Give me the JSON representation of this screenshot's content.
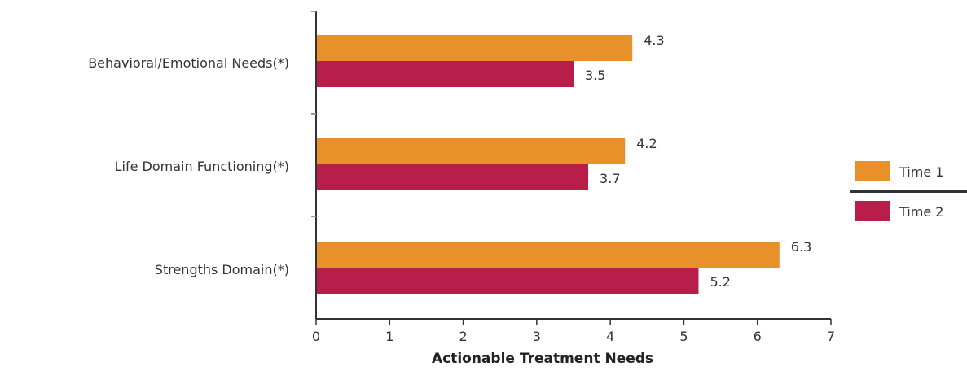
{
  "chart_data": {
    "type": "bar",
    "orientation": "horizontal",
    "categories": [
      "Behavioral/Emotional Needs(*)",
      "Life Domain Functioning(*)",
      "Strengths Domain(*)"
    ],
    "series": [
      {
        "name": "Time 1",
        "values": [
          4.3,
          4.2,
          6.3
        ],
        "color": "#E8902A"
      },
      {
        "name": "Time 2",
        "values": [
          3.5,
          3.7,
          5.2
        ],
        "color": "#B81E4A"
      }
    ],
    "value_labels": [
      [
        "4.3",
        "4.2",
        "6.3"
      ],
      [
        "3.5",
        "3.7",
        "5.2"
      ]
    ],
    "xlabel": "Actionable Treatment Needs",
    "ylabel": "",
    "title": "",
    "xlim": [
      0,
      7
    ],
    "xticks": [
      "0",
      "1",
      "2",
      "3",
      "4",
      "5",
      "6",
      "7"
    ],
    "grid": false,
    "legend_position": "right"
  }
}
